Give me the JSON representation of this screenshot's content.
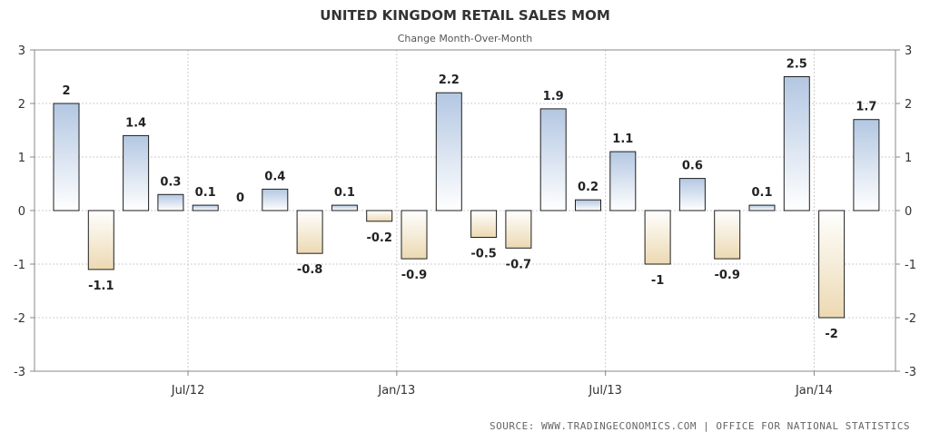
{
  "chart_data": {
    "type": "bar",
    "title": "UNITED KINGDOM RETAIL SALES MOM",
    "subtitle": "Change Month-Over-Month",
    "source": "SOURCE: WWW.TRADINGECONOMICS.COM | OFFICE FOR NATIONAL STATISTICS",
    "values": [
      2,
      -1.1,
      1.4,
      0.3,
      0.1,
      0,
      0.4,
      -0.8,
      0.1,
      -0.2,
      -0.9,
      2.2,
      -0.5,
      -0.7,
      1.9,
      0.2,
      1.1,
      -1,
      0.6,
      -0.9,
      0.1,
      2.5,
      -2,
      1.7
    ],
    "value_labels": [
      "2",
      "-1.1",
      "1.4",
      "0.3",
      "0.1",
      "0",
      "0.4",
      "-0.8",
      "0.1",
      "-0.2",
      "-0.9",
      "2.2",
      "-0.5",
      "-0.7",
      "1.9",
      "0.2",
      "1.1",
      "-1",
      "0.6",
      "-0.9",
      "0.1",
      "2.5",
      "-2",
      "1.7"
    ],
    "x_ticks": [
      {
        "label": "Jul/12",
        "index": 3
      },
      {
        "label": "Jan/13",
        "index": 9
      },
      {
        "label": "Jul/13",
        "index": 15
      },
      {
        "label": "Jan/14",
        "index": 21
      }
    ],
    "y_ticks": [
      "3",
      "2",
      "1",
      "0",
      "-1",
      "-2",
      "-3"
    ],
    "ylim": [
      -3,
      3
    ],
    "grid": true,
    "colors": {
      "positive_top": "#b3c7e2",
      "positive_bottom": "#ffffff",
      "negative_top": "#ffffff",
      "negative_bottom": "#ecd9b2",
      "bar_stroke": "#1e1e1e",
      "grid": "#cccccc",
      "axis": "#888888"
    }
  }
}
